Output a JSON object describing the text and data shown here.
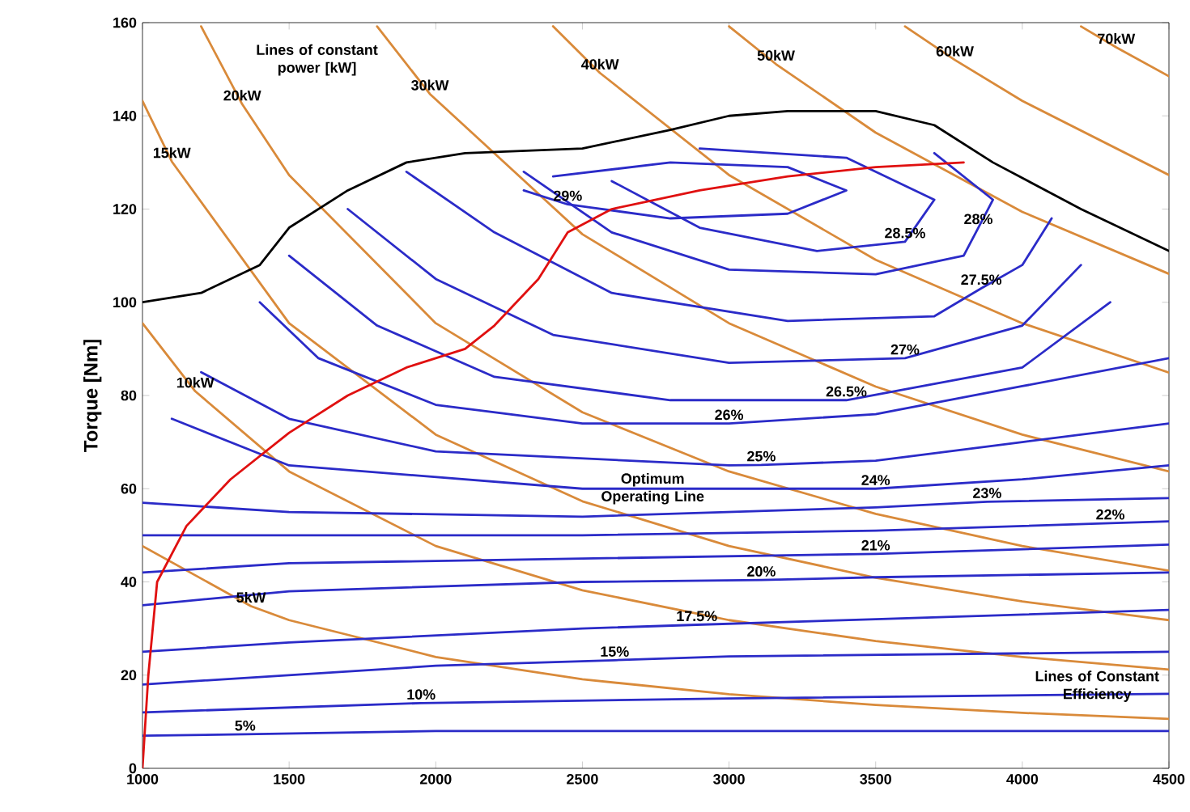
{
  "chart_data": {
    "type": "line",
    "ylabel": "Torque [Nm]",
    "xlim": [
      1000,
      4500
    ],
    "ylim": [
      0,
      160
    ],
    "xticks": [
      1000,
      1500,
      2000,
      2500,
      3000,
      3500,
      4000,
      4500
    ],
    "yticks": [
      0,
      20,
      40,
      60,
      80,
      100,
      120,
      140,
      160
    ],
    "grid": false,
    "legend": false,
    "marker": "none",
    "line_style": "solid",
    "series": [
      {
        "color": "#d98a3a",
        "x": [
          1000,
          1370,
          1500,
          2000,
          2500,
          3000,
          3500,
          4000,
          4500
        ],
        "values": [
          47.7,
          34.8,
          31.8,
          23.9,
          19.1,
          15.9,
          13.6,
          11.9,
          10.6
        ]
      },
      {
        "color": "#d98a3a",
        "x": [
          1000,
          1180,
          1500,
          2000,
          2500,
          3000,
          3500,
          4000,
          4500
        ],
        "values": [
          95.5,
          80.9,
          63.7,
          47.7,
          38.2,
          31.8,
          27.3,
          23.9,
          21.2
        ]
      },
      {
        "color": "#d98a3a",
        "x": [
          1000,
          1100,
          1500,
          2000,
          2500,
          3000,
          3500,
          4000,
          4500
        ],
        "values": [
          143.2,
          130.2,
          95.5,
          71.6,
          57.3,
          47.7,
          40.9,
          35.8,
          31.8
        ]
      },
      {
        "color": "#d98a3a",
        "x": [
          1200,
          1340,
          1500,
          2000,
          2500,
          3000,
          3500,
          4000,
          4500
        ],
        "values": [
          159.2,
          142.5,
          127.3,
          95.5,
          76.4,
          63.7,
          54.6,
          47.7,
          42.4
        ]
      },
      {
        "color": "#d98a3a",
        "x": [
          1800,
          1980,
          2500,
          3000,
          3500,
          4000,
          4500
        ],
        "values": [
          159.2,
          144.7,
          114.6,
          95.5,
          81.9,
          71.6,
          63.7
        ]
      },
      {
        "color": "#d98a3a",
        "x": [
          2400,
          2560,
          3000,
          3500,
          4000,
          4500
        ],
        "values": [
          159.2,
          149.2,
          127.3,
          109.1,
          95.5,
          84.9
        ]
      },
      {
        "color": "#d98a3a",
        "x": [
          3000,
          3160,
          3500,
          4000,
          4500
        ],
        "values": [
          159.2,
          151.1,
          136.4,
          119.4,
          106.1
        ]
      },
      {
        "color": "#d98a3a",
        "x": [
          3600,
          3770,
          4000,
          4500
        ],
        "values": [
          159.2,
          152,
          143.2,
          127.3
        ]
      },
      {
        "color": "#d98a3a",
        "x": [
          4200,
          4320,
          4500
        ],
        "values": [
          159.2,
          154.7,
          148.5
        ]
      },
      {
        "color": "#2b2bc8",
        "x": [
          1000,
          1350,
          2000,
          3000,
          4000,
          4500
        ],
        "values": [
          7,
          7.3,
          8,
          8,
          8,
          8
        ]
      },
      {
        "color": "#2b2bc8",
        "x": [
          1000,
          1950,
          3000,
          4500
        ],
        "values": [
          12,
          14,
          15,
          16
        ]
      },
      {
        "color": "#2b2bc8",
        "x": [
          1000,
          2000,
          2610,
          3000,
          4500
        ],
        "values": [
          18,
          22,
          23.2,
          24,
          25
        ]
      },
      {
        "color": "#2b2bc8",
        "x": [
          1000,
          1500,
          2500,
          2890,
          3500,
          4500
        ],
        "values": [
          25,
          27,
          30,
          30.8,
          32,
          34
        ]
      },
      {
        "color": "#2b2bc8",
        "x": [
          1000,
          1500,
          2500,
          3110,
          3500,
          4500
        ],
        "values": [
          35,
          38,
          40,
          40.4,
          41,
          42
        ]
      },
      {
        "color": "#2b2bc8",
        "x": [
          1000,
          1500,
          2500,
          3500,
          4500
        ],
        "values": [
          42,
          44,
          45,
          46,
          48
        ]
      },
      {
        "color": "#2b2bc8",
        "x": [
          1000,
          1500,
          2500,
          3500,
          4300,
          4500
        ],
        "values": [
          50,
          50,
          50,
          51,
          52.6,
          53
        ]
      },
      {
        "color": "#2b2bc8",
        "x": [
          1000,
          1500,
          2500,
          3500,
          3880,
          4500
        ],
        "values": [
          57,
          55,
          54,
          56,
          57.2,
          58
        ]
      },
      {
        "color": "#2b2bc8",
        "x": [
          1100,
          1500,
          2500,
          3500,
          4000,
          4500
        ],
        "values": [
          75,
          65,
          60,
          60,
          62,
          65
        ]
      },
      {
        "color": "#2b2bc8",
        "x": [
          1200,
          1500,
          2000,
          3000,
          3110,
          3500,
          4000,
          4500
        ],
        "values": [
          85,
          75,
          68,
          65,
          65.1,
          66,
          70,
          74
        ]
      },
      {
        "color": "#2b2bc8",
        "x": [
          1400,
          1600,
          2000,
          2500,
          3000,
          3500,
          4000,
          4500
        ],
        "values": [
          100,
          88,
          78,
          74,
          74,
          76,
          82,
          88
        ]
      },
      {
        "color": "#2b2bc8",
        "x": [
          1500,
          1800,
          2200,
          2800,
          3400,
          4000,
          4300
        ],
        "values": [
          110,
          95,
          84,
          79,
          79,
          86,
          100
        ]
      },
      {
        "color": "#2b2bc8",
        "x": [
          1700,
          2000,
          2400,
          3000,
          3600,
          4000,
          4200
        ],
        "values": [
          120,
          105,
          93,
          87,
          88,
          95,
          108
        ]
      },
      {
        "color": "#2b2bc8",
        "x": [
          1900,
          2200,
          2600,
          3200,
          3700,
          3860,
          4000,
          4100
        ],
        "values": [
          128,
          115,
          102,
          96,
          97,
          103,
          108,
          118
        ]
      },
      {
        "color": "#2b2bc8",
        "x": [
          2300,
          2600,
          3000,
          3500,
          3800,
          3850,
          3900,
          3700
        ],
        "values": [
          128,
          115,
          107,
          106,
          110,
          116,
          122,
          132
        ]
      },
      {
        "color": "#2b2bc8",
        "x": [
          2600,
          2900,
          3300,
          3600,
          3700,
          3400,
          2900
        ],
        "values": [
          126,
          116,
          111,
          113,
          122,
          131,
          133
        ]
      },
      {
        "color": "#2b2bc8",
        "x": [
          2300,
          2450,
          2800,
          3200,
          3400,
          3200,
          2800,
          2400
        ],
        "values": [
          124,
          121,
          118,
          119,
          124,
          129,
          130,
          127
        ]
      },
      {
        "color": "#000000",
        "x": [
          1000,
          1200,
          1400,
          1500,
          1700,
          1900,
          2100,
          2500,
          2800,
          3000,
          3200,
          3500,
          3700,
          3900,
          4200,
          4500
        ],
        "values": [
          100,
          102,
          108,
          116,
          124,
          130,
          132,
          133,
          137,
          140,
          141,
          141,
          138,
          130,
          120,
          111
        ]
      },
      {
        "color": "#e01010",
        "x": [
          1000,
          1020,
          1050,
          1150,
          1300,
          1500,
          1700,
          1900,
          2100,
          2200,
          2350,
          2450,
          2600,
          2900,
          3200,
          3500,
          3800
        ],
        "values": [
          0,
          20,
          40,
          52,
          62,
          72,
          80,
          86,
          90,
          95,
          105,
          115,
          120,
          124,
          127,
          129,
          130
        ]
      }
    ],
    "annotations": [
      "Lines of constant power [kW]",
      {
        "text": "5kW",
        "x": 1370,
        "y": 34.8
      },
      {
        "text": "10kW",
        "x": 1180,
        "y": 80.9
      },
      {
        "text": "15kW",
        "x": 1100,
        "y": 130.2
      },
      {
        "text": "20kW",
        "x": 1340,
        "y": 142.5
      },
      {
        "text": "30kW",
        "x": 1980,
        "y": 144.7
      },
      {
        "text": "40kW",
        "x": 2560,
        "y": 149.2
      },
      {
        "text": "50kW",
        "x": 3160,
        "y": 151.1
      },
      {
        "text": "60kW",
        "x": 3770,
        "y": 152
      },
      {
        "text": "70kW",
        "x": 4320,
        "y": 154.7
      },
      {
        "text": "5%",
        "x": 1350,
        "y": 7.3
      },
      {
        "text": "10%",
        "x": 1950,
        "y": 14
      },
      {
        "text": "15%",
        "x": 2610,
        "y": 23.2
      },
      {
        "text": "17.5%",
        "x": 2890,
        "y": 30.8
      },
      {
        "text": "20%",
        "x": 3110,
        "y": 40.4
      },
      {
        "text": "21%",
        "x": 3500,
        "y": 46
      },
      {
        "text": "22%",
        "x": 4300,
        "y": 52.6
      },
      {
        "text": "23%",
        "x": 3880,
        "y": 57.2
      },
      {
        "text": "24%",
        "x": 3500,
        "y": 60
      },
      {
        "text": "25%",
        "x": 3110,
        "y": 65.1
      },
      {
        "text": "26%",
        "x": 3000,
        "y": 74
      },
      {
        "text": "26.5%",
        "x": 3400,
        "y": 79
      },
      {
        "text": "27%",
        "x": 3600,
        "y": 88
      },
      {
        "text": "27.5%",
        "x": 3860,
        "y": 103
      },
      {
        "text": "28%",
        "x": 3850,
        "y": 116
      },
      {
        "text": "28.5%",
        "x": 3600,
        "y": 113
      },
      {
        "text": "29%",
        "x": 2450,
        "y": 121
      },
      "Optimum Operating Line",
      "Lines of Constant Efficiency"
    ]
  }
}
